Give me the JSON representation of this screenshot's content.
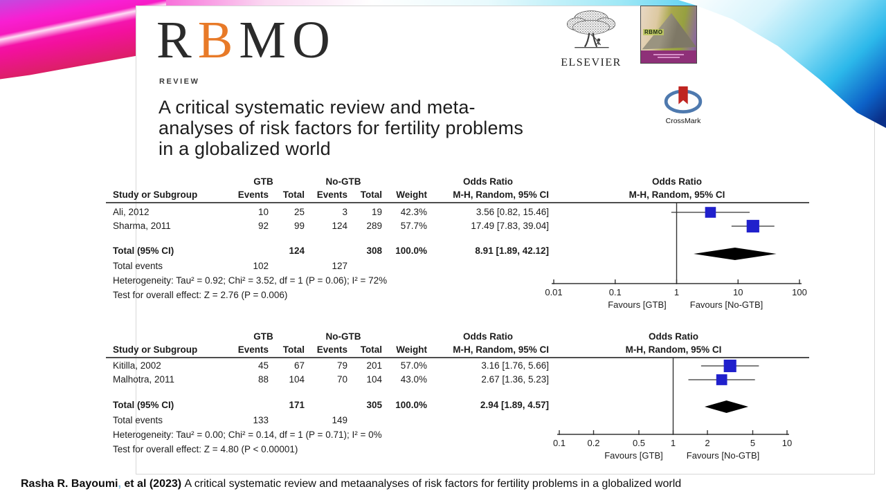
{
  "paper": {
    "journal_logo": {
      "r": "R",
      "b": "B",
      "mo": "MO"
    },
    "section_label": "REVIEW",
    "title_lines": {
      "l1": "A critical systematic review and meta-",
      "l2": "analyses of risk factors for fertility problems",
      "l3": "in a globalized world"
    },
    "publisher": {
      "name": "ELSEVIER"
    },
    "cover": {
      "label": "RBMO"
    },
    "crossmark": {
      "label": "CrossMark"
    }
  },
  "citation": {
    "author": "Rasha R. Bayoumi",
    "separator": ",",
    "etal": " et al (2023) ",
    "title": "A critical systematic review and metaanalyses of risk factors for fertility problems in a globalized world"
  },
  "chart_data": [
    {
      "type": "forest_plot",
      "measure": "Odds Ratio",
      "method": "M-H, Random, 95% CI",
      "group_headers": {
        "exposed": "GTB",
        "control": "No-GTB"
      },
      "columns": {
        "study": "Study or Subgroup",
        "events1": "Events",
        "total1": "Total",
        "events2": "Events",
        "total2": "Total",
        "weight": "Weight",
        "or": "M-H, Random, 95% CI"
      },
      "studies": [
        {
          "label": "Ali, 2012",
          "e_events": 10,
          "e_total": 25,
          "c_events": 3,
          "c_total": 19,
          "weight": "42.3%",
          "weight_pct": 42.3,
          "or": 3.56,
          "ci_low": 0.82,
          "ci_high": 15.46,
          "or_text": "3.56 [0.82, 15.46]"
        },
        {
          "label": "Sharma, 2011",
          "e_events": 92,
          "e_total": 99,
          "c_events": 124,
          "c_total": 289,
          "weight": "57.7%",
          "weight_pct": 57.7,
          "or": 17.49,
          "ci_low": 7.83,
          "ci_high": 39.04,
          "or_text": "17.49 [7.83, 39.04]"
        }
      ],
      "total": {
        "label": "Total (95% CI)",
        "e_total": 124,
        "c_total": 308,
        "weight": "100.0%",
        "or": 8.91,
        "ci_low": 1.89,
        "ci_high": 42.12,
        "or_text": "8.91 [1.89, 42.12]"
      },
      "total_events": {
        "label": "Total events",
        "e_events": 102,
        "c_events": 127
      },
      "heterogeneity": "Heterogeneity: Tau² = 0.92; Chi² = 3.52, df = 1 (P = 0.06); I² = 72%",
      "overall_effect": "Test for overall effect: Z = 2.76 (P = 0.006)",
      "axis": {
        "scale": "log",
        "min": 0.01,
        "max": 100,
        "ticks": [
          0.01,
          0.1,
          1,
          10,
          100
        ],
        "favours_left": "Favours [GTB]",
        "favours_right": "Favours [No-GTB]"
      },
      "marker_color": "#2020cc"
    },
    {
      "type": "forest_plot",
      "measure": "Odds Ratio",
      "method": "M-H, Random, 95% CI",
      "group_headers": {
        "exposed": "GTB",
        "control": "No-GTB"
      },
      "columns": {
        "study": "Study or Subgroup",
        "events1": "Events",
        "total1": "Total",
        "events2": "Events",
        "total2": "Total",
        "weight": "Weight",
        "or": "M-H, Random, 95% CI"
      },
      "studies": [
        {
          "label": "Kitilla, 2002",
          "e_events": 45,
          "e_total": 67,
          "c_events": 79,
          "c_total": 201,
          "weight": "57.0%",
          "weight_pct": 57.0,
          "or": 3.16,
          "ci_low": 1.76,
          "ci_high": 5.66,
          "or_text": "3.16 [1.76, 5.66]"
        },
        {
          "label": "Malhotra, 2011",
          "e_events": 88,
          "e_total": 104,
          "c_events": 70,
          "c_total": 104,
          "weight": "43.0%",
          "weight_pct": 43.0,
          "or": 2.67,
          "ci_low": 1.36,
          "ci_high": 5.23,
          "or_text": "2.67 [1.36, 5.23]"
        }
      ],
      "total": {
        "label": "Total (95% CI)",
        "e_total": 171,
        "c_total": 305,
        "weight": "100.0%",
        "or": 2.94,
        "ci_low": 1.89,
        "ci_high": 4.57,
        "or_text": "2.94 [1.89, 4.57]"
      },
      "total_events": {
        "label": "Total events",
        "e_events": 133,
        "c_events": 149
      },
      "heterogeneity": "Heterogeneity: Tau² = 0.00; Chi² = 0.14, df = 1 (P = 0.71); I² = 0%",
      "overall_effect": "Test for overall effect: Z = 4.80 (P < 0.00001)",
      "axis": {
        "scale": "log",
        "min": 0.1,
        "max": 10,
        "ticks": [
          0.1,
          0.2,
          0.5,
          1,
          2,
          5,
          10
        ],
        "favours_left": "Favours [GTB]",
        "favours_right": "Favours [No-GTB]"
      },
      "marker_color": "#2020cc"
    }
  ]
}
